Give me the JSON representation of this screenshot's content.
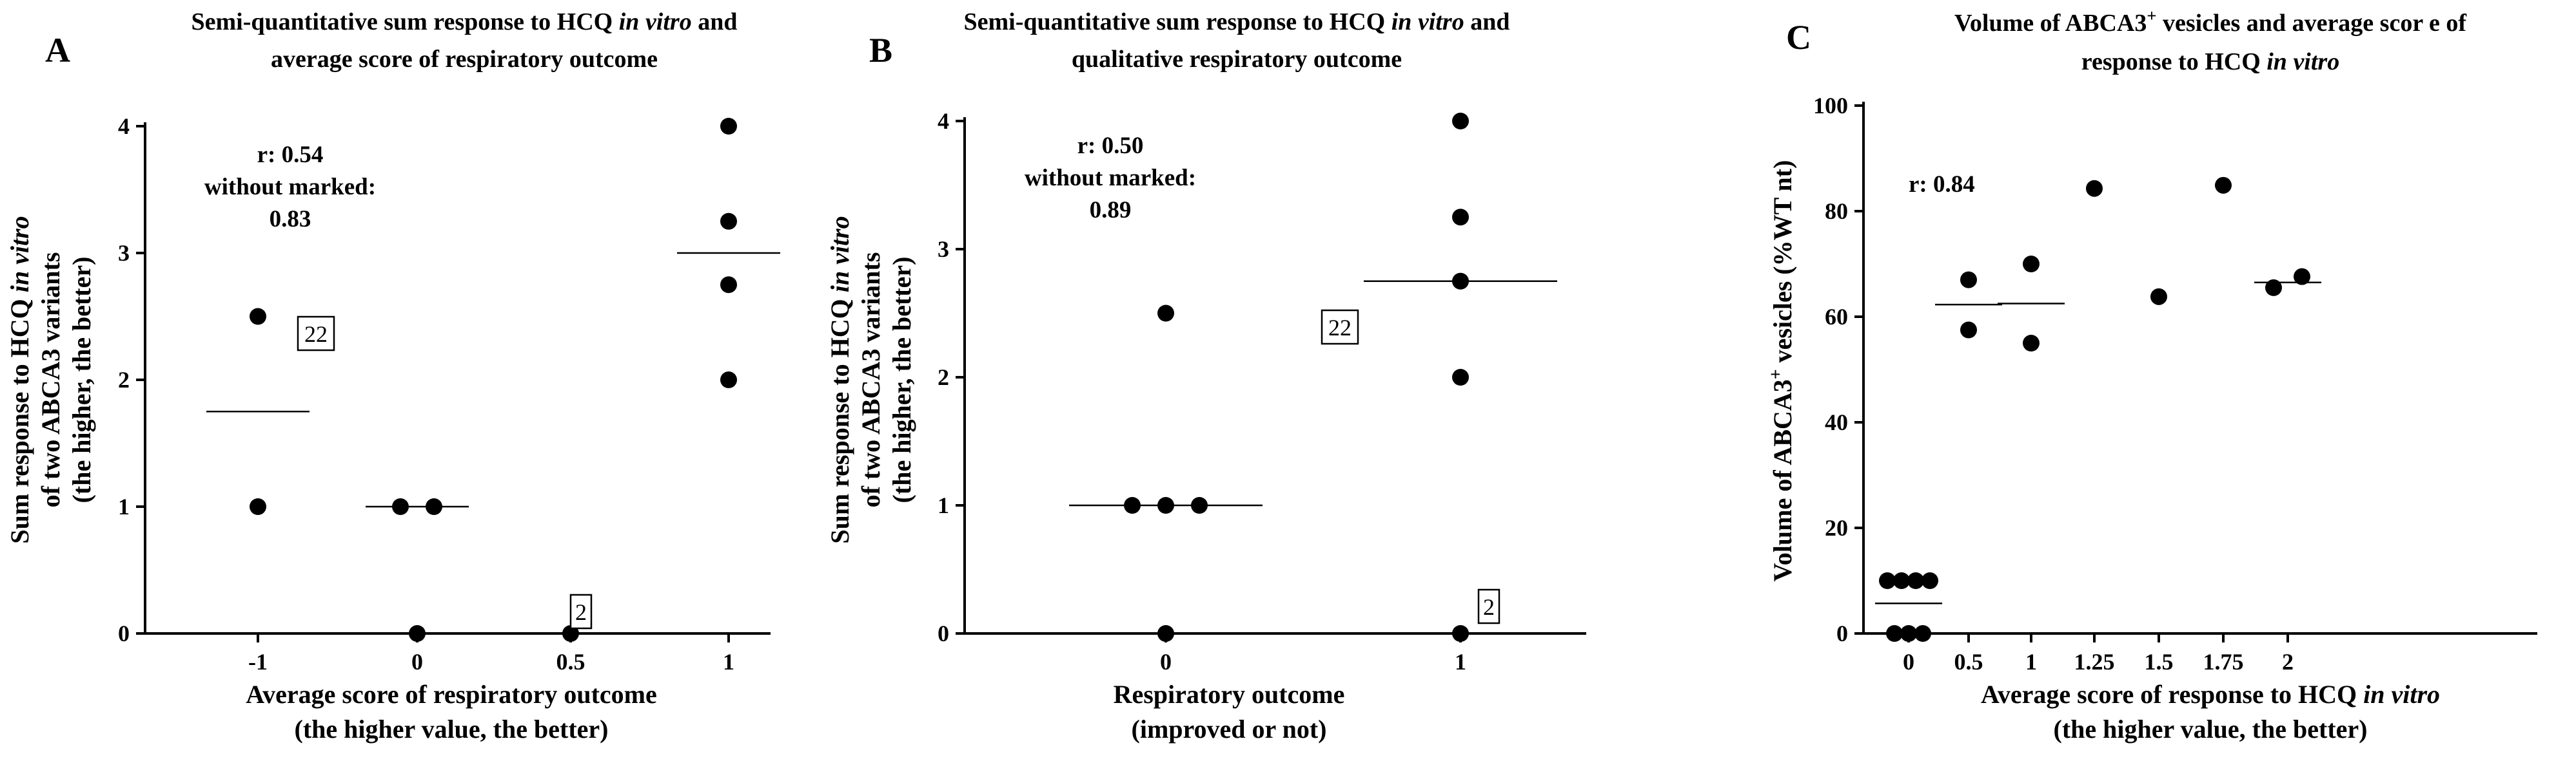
{
  "chart_data": [
    {
      "panel_label": "A",
      "type": "scatter",
      "title_lines": [
        [
          {
            "t": "Semi-quantitative sum response to HCQ "
          },
          {
            "t": "in vitro",
            "i": true
          },
          {
            "t": " and"
          }
        ],
        [
          {
            "t": "average score of respiratory outcome"
          }
        ]
      ],
      "xlabel_lines": [
        [
          {
            "t": "Average score of respiratory outcome"
          }
        ],
        [
          {
            "t": "(the higher value, the better)"
          }
        ]
      ],
      "ylabel_lines": [
        [
          {
            "t": "Sum response to HCQ "
          },
          {
            "t": "in vitro",
            "i": true
          }
        ],
        [
          {
            "t": "of two ABCA3 variants"
          }
        ],
        [
          {
            "t": "(the higher, the better)"
          }
        ]
      ],
      "categories": [
        "-1",
        "0",
        "0.5",
        "1"
      ],
      "ylim": [
        0,
        4
      ],
      "yticks": [
        "0",
        "1",
        "2",
        "3",
        "4"
      ],
      "points": [
        {
          "cat": 0,
          "y": 2.5,
          "off": 0
        },
        {
          "cat": 0,
          "y": 1.0,
          "off": 0
        },
        {
          "cat": 1,
          "y": 1.0,
          "off": -1
        },
        {
          "cat": 1,
          "y": 1.0,
          "off": 1
        },
        {
          "cat": 1,
          "y": 0.0,
          "off": 0
        },
        {
          "cat": 2,
          "y": 0.0,
          "off": 0
        },
        {
          "cat": 3,
          "y": 4.0,
          "off": 0
        },
        {
          "cat": 3,
          "y": 3.25,
          "off": 0
        },
        {
          "cat": 3,
          "y": 2.75,
          "off": 0
        },
        {
          "cat": 3,
          "y": 2.0,
          "off": 0
        }
      ],
      "means": [
        {
          "cat": 0,
          "y": 1.75
        },
        {
          "cat": 1,
          "y": 1.0
        },
        {
          "cat": 3,
          "y": 3.0
        }
      ],
      "boxes": [
        {
          "text": "22",
          "cat": 0,
          "y": 2.5
        },
        {
          "text": "2",
          "cat": 2,
          "y": 0.0
        }
      ],
      "annotation": [
        "r: 0.54",
        "without marked:",
        "0.83"
      ]
    },
    {
      "panel_label": "B",
      "type": "scatter",
      "title_lines": [
        [
          {
            "t": "Semi-quantitative sum response to HCQ "
          },
          {
            "t": "in vitro",
            "i": true
          },
          {
            "t": " and"
          }
        ],
        [
          {
            "t": "qualitative respiratory outcome"
          }
        ]
      ],
      "xlabel_lines": [
        [
          {
            "t": "Respiratory outcome"
          }
        ],
        [
          {
            "t": "(improved or not)"
          }
        ]
      ],
      "ylabel_lines": [
        [
          {
            "t": "Sum response to HCQ "
          },
          {
            "t": "in vitro",
            "i": true
          }
        ],
        [
          {
            "t": "of two ABCA3 variants"
          }
        ],
        [
          {
            "t": "(the higher, the better)"
          }
        ]
      ],
      "categories": [
        "0",
        "1"
      ],
      "ylim": [
        0,
        4
      ],
      "yticks": [
        "0",
        "1",
        "2",
        "3",
        "4"
      ],
      "points": [
        {
          "cat": 0,
          "y": 2.5,
          "off": 0
        },
        {
          "cat": 0,
          "y": 1.0,
          "off": -1
        },
        {
          "cat": 0,
          "y": 1.0,
          "off": 0
        },
        {
          "cat": 0,
          "y": 1.0,
          "off": 1
        },
        {
          "cat": 0,
          "y": 0.0,
          "off": 0
        },
        {
          "cat": 1,
          "y": 4.0,
          "off": 0
        },
        {
          "cat": 1,
          "y": 3.25,
          "off": 0
        },
        {
          "cat": 1,
          "y": 2.75,
          "off": 0
        },
        {
          "cat": 1,
          "y": 2.0,
          "off": 0
        },
        {
          "cat": 1,
          "y": 0.0,
          "off": 0
        }
      ],
      "means": [
        {
          "cat": 0,
          "y": 1.0
        },
        {
          "cat": 1,
          "y": 2.75
        }
      ],
      "boxes": [
        {
          "text": "22",
          "cat": 0,
          "y": 2.5
        },
        {
          "text": "2",
          "cat": 1,
          "y": 0.0
        }
      ],
      "annotation": [
        "r: 0.50",
        "without marked:",
        "0.89"
      ]
    },
    {
      "panel_label": "C",
      "type": "scatter",
      "title_lines": [
        [
          {
            "t": "Volume of ABCA3"
          },
          {
            "t": "+",
            "sup": true
          },
          {
            "t": " vesicles and average scor e of"
          }
        ],
        [
          {
            "t": "response to HCQ "
          },
          {
            "t": "in vitro",
            "i": true
          }
        ]
      ],
      "xlabel_lines": [
        [
          {
            "t": "Average score of response to HCQ "
          },
          {
            "t": "in vitro",
            "i": true
          }
        ],
        [
          {
            "t": "(the higher value, the better)"
          }
        ]
      ],
      "ylabel_lines": [
        [
          {
            "t": "Volume of ABCA3"
          },
          {
            "t": "+",
            "sup": true
          },
          {
            "t": " vesicles (%WT nt)"
          }
        ]
      ],
      "categories": [
        "0",
        "0.5",
        "1",
        "1.25",
        "1.5",
        "1.75",
        "2"
      ],
      "ylim": [
        0,
        100
      ],
      "yticks": [
        "0",
        "20",
        "40",
        "60",
        "80",
        "100"
      ],
      "points": [
        {
          "cat": 0,
          "y": 10,
          "off": -1.5
        },
        {
          "cat": 0,
          "y": 10,
          "off": -0.5
        },
        {
          "cat": 0,
          "y": 10,
          "off": 0.5
        },
        {
          "cat": 0,
          "y": 10,
          "off": 1.5
        },
        {
          "cat": 0,
          "y": 0,
          "off": -1
        },
        {
          "cat": 0,
          "y": 0,
          "off": 0
        },
        {
          "cat": 0,
          "y": 0,
          "off": 1
        },
        {
          "cat": 1,
          "y": 67,
          "off": 0
        },
        {
          "cat": 1,
          "y": 57.5,
          "off": 0
        },
        {
          "cat": 2,
          "y": 70,
          "off": 0
        },
        {
          "cat": 2,
          "y": 55,
          "off": 0
        },
        {
          "cat": 3,
          "y": 84.3,
          "off": 0
        },
        {
          "cat": 4,
          "y": 63.8,
          "off": 0
        },
        {
          "cat": 5,
          "y": 84.9,
          "off": 0
        },
        {
          "cat": 6,
          "y": 65.5,
          "off": -1
        },
        {
          "cat": 6,
          "y": 67.6,
          "off": 1
        }
      ],
      "means": [
        {
          "cat": 0,
          "y": 5.7
        },
        {
          "cat": 1,
          "y": 62.3
        },
        {
          "cat": 2,
          "y": 62.5
        },
        {
          "cat": 6,
          "y": 66.5
        }
      ],
      "boxes": [],
      "annotation": [
        "r: 0.84"
      ]
    }
  ]
}
